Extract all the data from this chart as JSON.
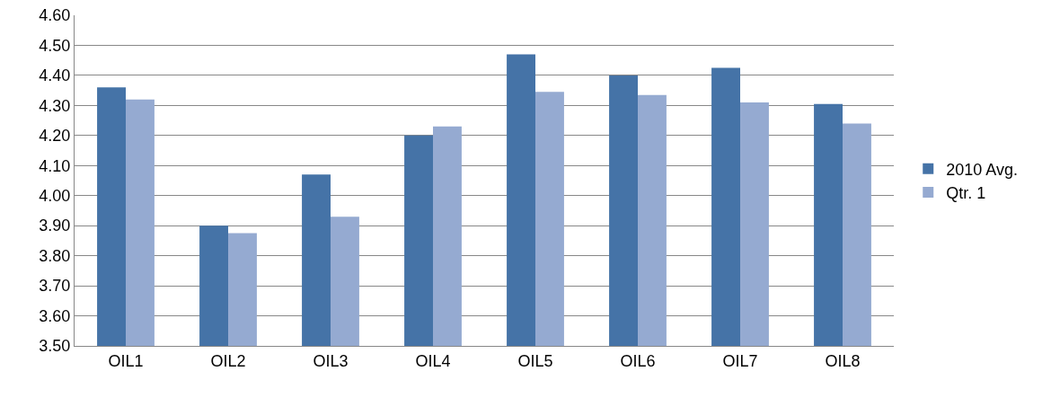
{
  "chart_data": {
    "type": "bar",
    "categories": [
      "OIL1",
      "OIL2",
      "OIL3",
      "OIL4",
      "OIL5",
      "OIL6",
      "OIL7",
      "OIL8"
    ],
    "series": [
      {
        "name": "2010 Avg.",
        "color": "#4573a7",
        "values": [
          4.36,
          3.9,
          4.07,
          4.2,
          4.47,
          4.4,
          4.425,
          4.305
        ]
      },
      {
        "name": "Qtr. 1",
        "color": "#95aad1",
        "values": [
          4.32,
          3.875,
          3.93,
          4.23,
          4.345,
          4.335,
          4.31,
          4.24
        ]
      }
    ],
    "ylim": [
      3.5,
      4.6
    ],
    "yticks": [
      {
        "value": 3.5,
        "label": "3.50"
      },
      {
        "value": 3.6,
        "label": "3.60"
      },
      {
        "value": 3.7,
        "label": "3.70"
      },
      {
        "value": 3.8,
        "label": "3.80"
      },
      {
        "value": 3.9,
        "label": "3.90"
      },
      {
        "value": 4.0,
        "label": "4.00"
      },
      {
        "value": 4.1,
        "label": "4.10"
      },
      {
        "value": 4.2,
        "label": "4.20"
      },
      {
        "value": 4.3,
        "label": "4.30"
      },
      {
        "value": 4.4,
        "label": "4.40"
      },
      {
        "value": 4.5,
        "label": "4.50"
      },
      {
        "value": 4.6,
        "label": "4.60"
      }
    ],
    "grid": "y",
    "legend": "right"
  }
}
